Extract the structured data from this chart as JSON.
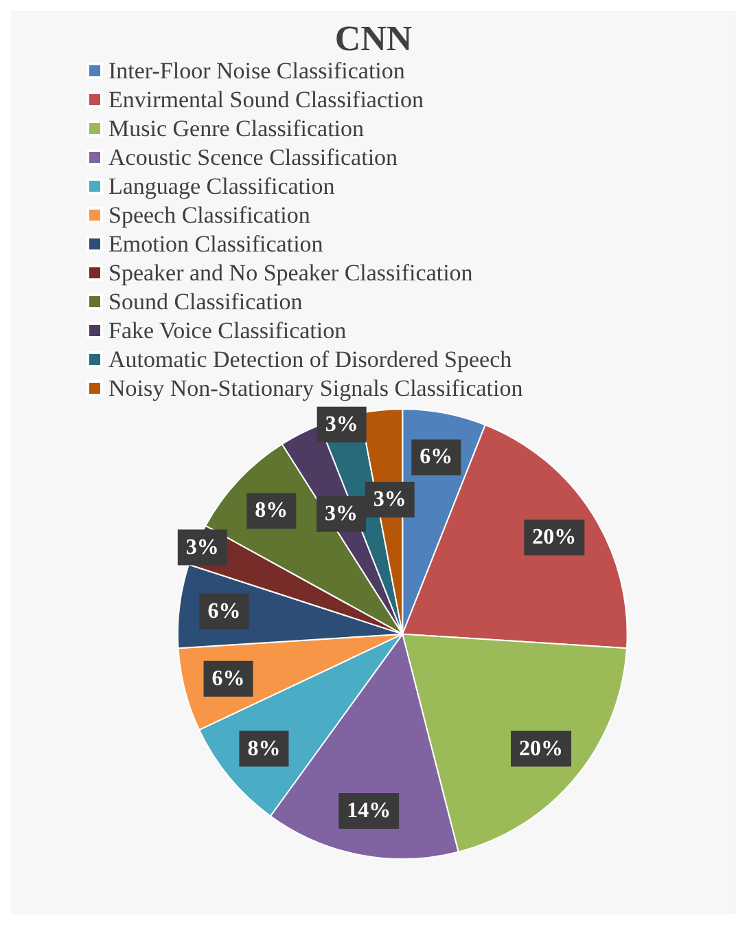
{
  "chart_data": {
    "type": "pie",
    "title": "CNN",
    "categories": [
      "Inter-Floor Noise Classification",
      "Envirmental Sound Classifiaction",
      "Music Genre Classification",
      "Acoustic Scence Classification",
      "Language Classification",
      "Speech Classification",
      "Emotion Classification",
      "Speaker and No Speaker Classification",
      "Sound Classification",
      "Fake Voice Classification",
      "Automatic Detection of Disordered Speech",
      "Noisy Non-Stationary Signals Classification"
    ],
    "values": [
      6,
      20,
      20,
      14,
      8,
      6,
      6,
      3,
      8,
      3,
      3,
      3
    ],
    "colors": [
      "#4f81bd",
      "#c0504d",
      "#9bbb59",
      "#8064a2",
      "#4bacc6",
      "#f79646",
      "#2c4d75",
      "#772c2a",
      "#5f7530",
      "#4d3b62",
      "#276a7c",
      "#b65708"
    ],
    "value_labels": [
      "6%",
      "20%",
      "20%",
      "14%",
      "8%",
      "6%",
      "6%",
      "3%",
      "8%",
      "3%",
      "3%",
      "3%"
    ],
    "legend": "top"
  }
}
